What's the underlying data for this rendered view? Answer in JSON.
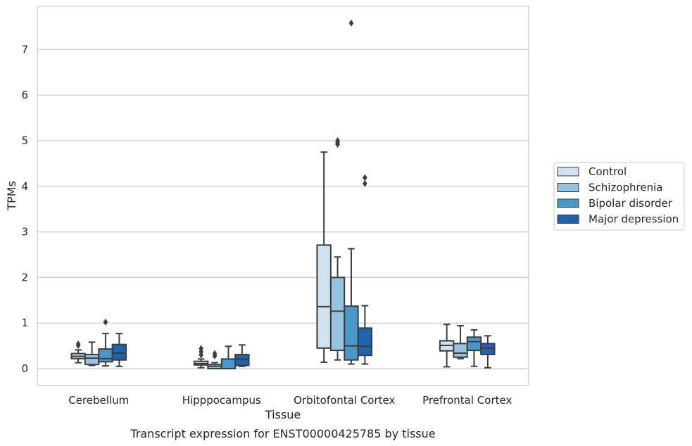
{
  "chart_data": {
    "type": "box",
    "title": "Transcript expression for ENST00000425785 by tissue",
    "xlabel": "Tissue",
    "ylabel": "TPMs",
    "ylim": [
      -0.37,
      7.95
    ],
    "yticks": [
      0,
      1,
      2,
      3,
      4,
      5,
      6,
      7
    ],
    "grid": "horizontal",
    "legend_position": "right",
    "categories": [
      "Cerebellum",
      "Hipppocampus",
      "Orbitofontal Cortex",
      "Prefrontal Cortex"
    ],
    "series": [
      {
        "name": "Control",
        "color": "#d0e1f2",
        "boxes": [
          {
            "whisker_low": 0.13,
            "q1": 0.22,
            "median": 0.27,
            "q3": 0.33,
            "whisker_high": 0.41,
            "outliers": [
              0.51,
              0.54
            ]
          },
          {
            "whisker_low": 0.02,
            "q1": 0.08,
            "median": 0.11,
            "q3": 0.16,
            "whisker_high": 0.21,
            "outliers": [
              0.3,
              0.37,
              0.44
            ]
          },
          {
            "whisker_low": 0.14,
            "q1": 0.45,
            "median": 1.36,
            "q3": 2.71,
            "whisker_high": 4.75,
            "outliers": []
          },
          {
            "whisker_low": 0.04,
            "q1": 0.39,
            "median": 0.51,
            "q3": 0.61,
            "whisker_high": 0.97,
            "outliers": []
          }
        ]
      },
      {
        "name": "Schizophrenia",
        "color": "#94c4df",
        "boxes": [
          {
            "whisker_low": 0.07,
            "q1": 0.09,
            "median": 0.23,
            "q3": 0.31,
            "whisker_high": 0.58,
            "outliers": []
          },
          {
            "whisker_low": 0.0,
            "q1": 0.0,
            "median": 0.05,
            "q3": 0.09,
            "whisker_high": 0.13,
            "outliers": [
              0.28,
              0.33
            ]
          },
          {
            "whisker_low": 0.19,
            "q1": 0.4,
            "median": 1.26,
            "q3": 2.0,
            "whisker_high": 2.45,
            "outliers": [
              4.92,
              4.96,
              5.0
            ]
          },
          {
            "whisker_low": 0.22,
            "q1": 0.25,
            "median": 0.34,
            "q3": 0.55,
            "whisker_high": 0.94,
            "outliers": []
          }
        ]
      },
      {
        "name": "Bipolar disorder",
        "color": "#4a98c9",
        "boxes": [
          {
            "whisker_low": 0.06,
            "q1": 0.15,
            "median": 0.22,
            "q3": 0.43,
            "whisker_high": 0.77,
            "outliers": [
              1.02
            ]
          },
          {
            "whisker_low": 0.0,
            "q1": 0.0,
            "median": 0.0,
            "q3": 0.21,
            "whisker_high": 0.49,
            "outliers": []
          },
          {
            "whisker_low": 0.1,
            "q1": 0.19,
            "median": 0.5,
            "q3": 1.37,
            "whisker_high": 2.63,
            "outliers": [
              7.58
            ]
          },
          {
            "whisker_low": 0.05,
            "q1": 0.4,
            "median": 0.59,
            "q3": 0.69,
            "whisker_high": 0.85,
            "outliers": []
          }
        ]
      },
      {
        "name": "Major depression",
        "color": "#2163aa",
        "boxes": [
          {
            "whisker_low": 0.05,
            "q1": 0.19,
            "median": 0.34,
            "q3": 0.53,
            "whisker_high": 0.77,
            "outliers": []
          },
          {
            "whisker_low": 0.05,
            "q1": 0.07,
            "median": 0.21,
            "q3": 0.31,
            "whisker_high": 0.52,
            "outliers": []
          },
          {
            "whisker_low": 0.1,
            "q1": 0.29,
            "median": 0.49,
            "q3": 0.89,
            "whisker_high": 1.38,
            "outliers": [
              4.06,
              4.19
            ]
          },
          {
            "whisker_low": 0.02,
            "q1": 0.31,
            "median": 0.45,
            "q3": 0.55,
            "whisker_high": 0.72,
            "outliers": []
          }
        ]
      }
    ]
  }
}
